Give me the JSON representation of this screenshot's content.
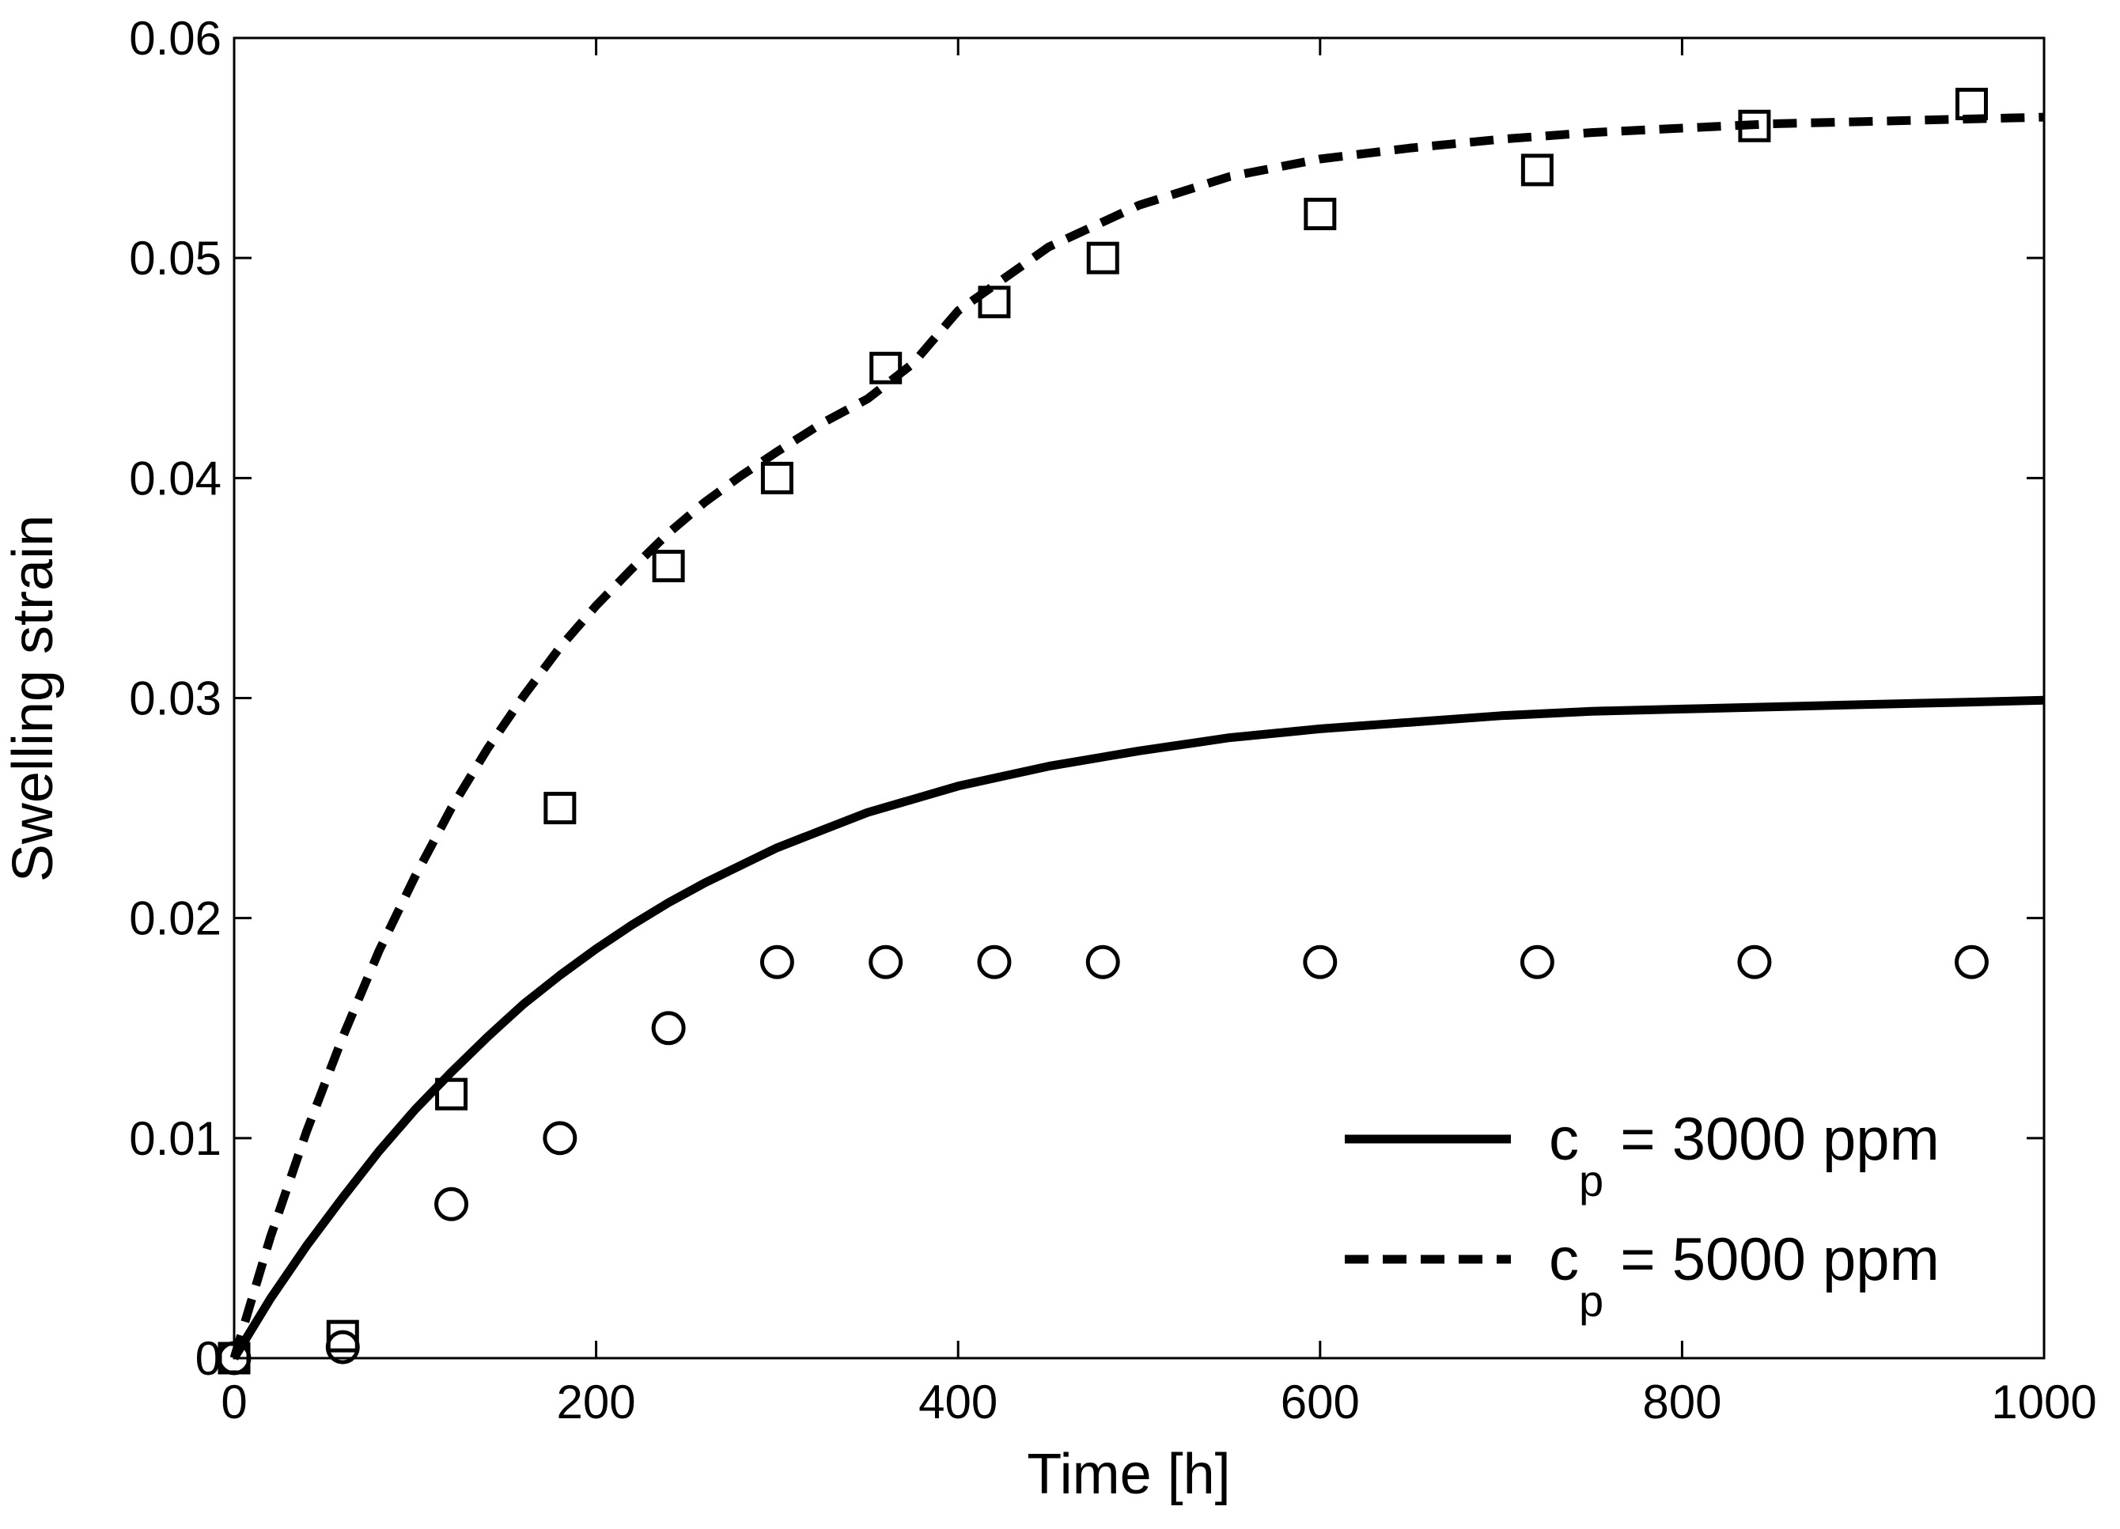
{
  "chart_data": {
    "type": "line",
    "title": "",
    "xlabel": "Time [h]",
    "ylabel": "Swelling strain",
    "xlim": [
      0,
      1000
    ],
    "ylim": [
      0,
      0.06
    ],
    "xticks": [
      0,
      200,
      400,
      600,
      800,
      1000
    ],
    "xtick_labels": [
      "0",
      "200",
      "400",
      "600",
      "800",
      "1000"
    ],
    "yticks": [
      0,
      0.01,
      0.02,
      0.03,
      0.04,
      0.05,
      0.06
    ],
    "ytick_labels": [
      "0",
      "0.01",
      "0.02",
      "0.03",
      "0.04",
      "0.05",
      "0.06"
    ],
    "grid": false,
    "legend_position": "bottom-right",
    "series": [
      {
        "name": "3000 ppm model",
        "kind": "line",
        "style": "solid",
        "legend_label_prefix": "c",
        "legend_label_sub": "p",
        "legend_label_rest": " = 3000 ppm",
        "x": [
          0,
          20,
          40,
          60,
          80,
          100,
          120,
          140,
          160,
          180,
          200,
          220,
          240,
          260,
          280,
          300,
          325,
          350,
          375,
          400,
          450,
          500,
          550,
          600,
          650,
          700,
          750,
          800,
          850,
          900,
          950,
          1000
        ],
        "y": [
          0,
          0.0027,
          0.0051,
          0.0073,
          0.0094,
          0.0113,
          0.013,
          0.0146,
          0.0161,
          0.0174,
          0.0186,
          0.0197,
          0.0207,
          0.0216,
          0.0224,
          0.0232,
          0.024,
          0.0248,
          0.0254,
          0.026,
          0.0269,
          0.0276,
          0.0282,
          0.0286,
          0.0289,
          0.0292,
          0.0294,
          0.0295,
          0.0296,
          0.0297,
          0.0298,
          0.0299
        ]
      },
      {
        "name": "5000 ppm model",
        "kind": "line",
        "style": "dashed",
        "legend_label_prefix": "c",
        "legend_label_sub": "p",
        "legend_label_rest": " = 5000 ppm",
        "x": [
          0,
          20,
          40,
          60,
          80,
          100,
          120,
          140,
          160,
          180,
          200,
          220,
          240,
          260,
          280,
          300,
          325,
          350,
          375,
          400,
          450,
          500,
          550,
          600,
          650,
          700,
          750,
          800,
          850,
          900,
          950,
          1000
        ],
        "y": [
          0,
          0.0055,
          0.0103,
          0.0146,
          0.0185,
          0.0219,
          0.025,
          0.0277,
          0.0301,
          0.0323,
          0.0342,
          0.0359,
          0.0375,
          0.0389,
          0.0401,
          0.0412,
          0.0425,
          0.0436,
          0.0452,
          0.0476,
          0.0505,
          0.0524,
          0.0537,
          0.0545,
          0.055,
          0.0554,
          0.0557,
          0.0559,
          0.0561,
          0.0562,
          0.0563,
          0.0564
        ]
      },
      {
        "name": "3000 ppm data",
        "kind": "scatter",
        "marker": "circle",
        "x": [
          0,
          60,
          120,
          180,
          240,
          300,
          360,
          420,
          480,
          600,
          720,
          840,
          960
        ],
        "y": [
          0,
          0.0005,
          0.007,
          0.01,
          0.015,
          0.018,
          0.018,
          0.018,
          0.018,
          0.018,
          0.018,
          0.018,
          0.018
        ]
      },
      {
        "name": "5000 ppm data",
        "kind": "scatter",
        "marker": "square",
        "x": [
          0,
          60,
          120,
          180,
          240,
          300,
          360,
          420,
          480,
          600,
          720,
          840,
          960
        ],
        "y": [
          0,
          0.001,
          0.012,
          0.025,
          0.036,
          0.04,
          0.045,
          0.048,
          0.05,
          0.052,
          0.054,
          0.056,
          0.057
        ]
      }
    ]
  }
}
